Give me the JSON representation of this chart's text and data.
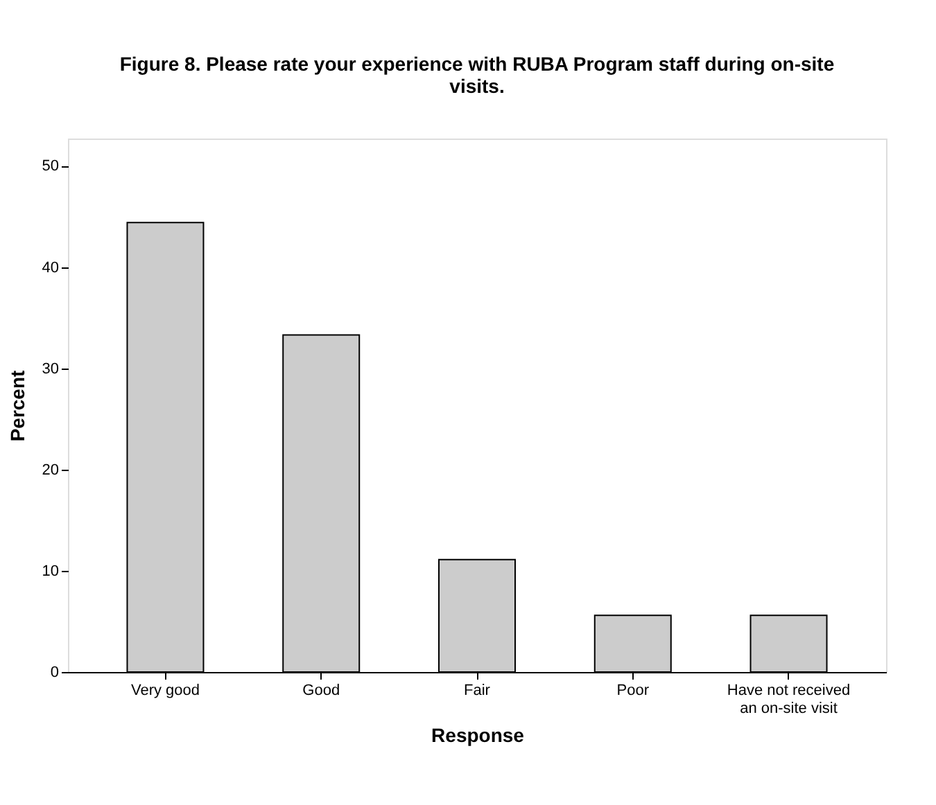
{
  "chart_data": {
    "type": "bar",
    "title": "Figure 8.  Please rate your experience with RUBA Program staff during on-site\nvisits.",
    "xlabel": "Response",
    "ylabel": "Percent",
    "categories": [
      "Very good",
      "Good",
      "Fair",
      "Poor",
      "Have not received\nan on-site visit"
    ],
    "values": [
      44.4,
      33.3,
      11.1,
      5.6,
      5.6
    ],
    "color": "#cccccc",
    "ylim": [
      0,
      52.7
    ],
    "yticks": [
      0,
      10,
      20,
      30,
      40,
      50
    ],
    "grid": false
  }
}
